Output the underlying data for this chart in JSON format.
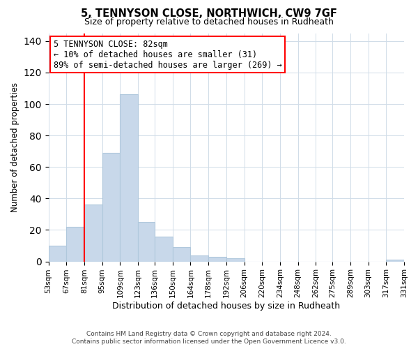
{
  "title": "5, TENNYSON CLOSE, NORTHWICH, CW9 7GF",
  "subtitle": "Size of property relative to detached houses in Rudheath",
  "xlabel": "Distribution of detached houses by size in Rudheath",
  "ylabel": "Number of detached properties",
  "bar_color": "#c8d8ea",
  "bar_edge_color": "#b0c8dc",
  "vline_x": 81,
  "vline_color": "red",
  "ylim": [
    0,
    145
  ],
  "yticks": [
    0,
    20,
    40,
    60,
    80,
    100,
    120,
    140
  ],
  "bin_edges": [
    53,
    67,
    81,
    95,
    109,
    123,
    136,
    150,
    164,
    178,
    192,
    206,
    220,
    234,
    248,
    262,
    275,
    289,
    303,
    317,
    331
  ],
  "bar_heights": [
    10,
    22,
    36,
    69,
    106,
    25,
    16,
    9,
    4,
    3,
    2,
    0,
    0,
    0,
    0,
    0,
    0,
    0,
    0,
    1
  ],
  "tick_labels": [
    "53sqm",
    "67sqm",
    "81sqm",
    "95sqm",
    "109sqm",
    "123sqm",
    "136sqm",
    "150sqm",
    "164sqm",
    "178sqm",
    "192sqm",
    "206sqm",
    "220sqm",
    "234sqm",
    "248sqm",
    "262sqm",
    "275sqm",
    "289sqm",
    "303sqm",
    "317sqm",
    "331sqm"
  ],
  "annotation_title": "5 TENNYSON CLOSE: 82sqm",
  "annotation_line1": "← 10% of detached houses are smaller (31)",
  "annotation_line2": "89% of semi-detached houses are larger (269) →",
  "annotation_box_color": "white",
  "annotation_box_edge": "red",
  "footer1": "Contains HM Land Registry data © Crown copyright and database right 2024.",
  "footer2": "Contains public sector information licensed under the Open Government Licence v3.0."
}
